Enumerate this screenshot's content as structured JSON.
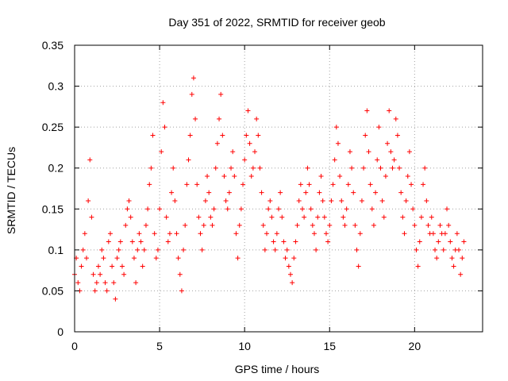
{
  "chart_data": {
    "type": "scatter",
    "title": "Day 351 of 2022, SRMTID for receiver geob",
    "xlabel": "GPS time / hours",
    "ylabel": "SRMTID / TECUs",
    "xlim": [
      0,
      24
    ],
    "ylim": [
      0,
      0.35
    ],
    "xticks": [
      0,
      5,
      10,
      15,
      20
    ],
    "xtick_labels": [
      "0",
      "5",
      "10",
      "15",
      "20"
    ],
    "yticks": [
      0,
      0.05,
      0.1,
      0.15,
      0.2,
      0.25,
      0.3,
      0.35
    ],
    "ytick_labels": [
      "0",
      "0.05",
      "0.1",
      "0.15",
      "0.2",
      "0.25",
      "0.3",
      "0.35"
    ],
    "grid": true,
    "marker": "+",
    "color": "#ff0000",
    "series": [
      {
        "name": "SRMTID",
        "points": [
          [
            0.0,
            0.07
          ],
          [
            0.1,
            0.09
          ],
          [
            0.2,
            0.06
          ],
          [
            0.3,
            0.05
          ],
          [
            0.4,
            0.08
          ],
          [
            0.5,
            0.1
          ],
          [
            0.6,
            0.12
          ],
          [
            0.7,
            0.09
          ],
          [
            0.8,
            0.16
          ],
          [
            0.9,
            0.21
          ],
          [
            1.0,
            0.14
          ],
          [
            1.1,
            0.07
          ],
          [
            1.2,
            0.05
          ],
          [
            1.3,
            0.06
          ],
          [
            1.4,
            0.08
          ],
          [
            1.5,
            0.07
          ],
          [
            1.6,
            0.1
          ],
          [
            1.7,
            0.09
          ],
          [
            1.8,
            0.06
          ],
          [
            1.9,
            0.05
          ],
          [
            2.0,
            0.11
          ],
          [
            2.1,
            0.12
          ],
          [
            2.2,
            0.08
          ],
          [
            2.3,
            0.06
          ],
          [
            2.4,
            0.04
          ],
          [
            2.5,
            0.09
          ],
          [
            2.6,
            0.1
          ],
          [
            2.7,
            0.11
          ],
          [
            2.8,
            0.08
          ],
          [
            2.9,
            0.07
          ],
          [
            3.0,
            0.13
          ],
          [
            3.1,
            0.15
          ],
          [
            3.2,
            0.16
          ],
          [
            3.3,
            0.14
          ],
          [
            3.4,
            0.11
          ],
          [
            3.5,
            0.09
          ],
          [
            3.6,
            0.06
          ],
          [
            3.7,
            0.1
          ],
          [
            3.8,
            0.12
          ],
          [
            3.9,
            0.11
          ],
          [
            4.0,
            0.08
          ],
          [
            4.1,
            0.1
          ],
          [
            4.2,
            0.13
          ],
          [
            4.3,
            0.15
          ],
          [
            4.4,
            0.18
          ],
          [
            4.5,
            0.2
          ],
          [
            4.6,
            0.24
          ],
          [
            4.7,
            0.12
          ],
          [
            4.8,
            0.09
          ],
          [
            4.9,
            0.1
          ],
          [
            5.0,
            0.15
          ],
          [
            5.1,
            0.22
          ],
          [
            5.2,
            0.28
          ],
          [
            5.3,
            0.25
          ],
          [
            5.4,
            0.14
          ],
          [
            5.5,
            0.11
          ],
          [
            5.6,
            0.12
          ],
          [
            5.7,
            0.17
          ],
          [
            5.8,
            0.2
          ],
          [
            5.9,
            0.16
          ],
          [
            6.0,
            0.12
          ],
          [
            6.1,
            0.09
          ],
          [
            6.2,
            0.07
          ],
          [
            6.3,
            0.05
          ],
          [
            6.4,
            0.1
          ],
          [
            6.5,
            0.13
          ],
          [
            6.6,
            0.18
          ],
          [
            6.7,
            0.21
          ],
          [
            6.8,
            0.24
          ],
          [
            6.9,
            0.29
          ],
          [
            7.0,
            0.31
          ],
          [
            7.1,
            0.26
          ],
          [
            7.2,
            0.18
          ],
          [
            7.3,
            0.14
          ],
          [
            7.4,
            0.12
          ],
          [
            7.5,
            0.1
          ],
          [
            7.6,
            0.13
          ],
          [
            7.7,
            0.16
          ],
          [
            7.8,
            0.19
          ],
          [
            7.9,
            0.17
          ],
          [
            8.0,
            0.14
          ],
          [
            8.1,
            0.13
          ],
          [
            8.2,
            0.15
          ],
          [
            8.3,
            0.2
          ],
          [
            8.4,
            0.23
          ],
          [
            8.5,
            0.26
          ],
          [
            8.6,
            0.29
          ],
          [
            8.7,
            0.24
          ],
          [
            8.8,
            0.19
          ],
          [
            8.9,
            0.16
          ],
          [
            9.0,
            0.15
          ],
          [
            9.1,
            0.17
          ],
          [
            9.2,
            0.2
          ],
          [
            9.3,
            0.22
          ],
          [
            9.4,
            0.19
          ],
          [
            9.5,
            0.12
          ],
          [
            9.6,
            0.09
          ],
          [
            9.7,
            0.13
          ],
          [
            9.8,
            0.15
          ],
          [
            9.9,
            0.18
          ],
          [
            10.0,
            0.21
          ],
          [
            10.1,
            0.24
          ],
          [
            10.2,
            0.27
          ],
          [
            10.3,
            0.23
          ],
          [
            10.4,
            0.19
          ],
          [
            10.5,
            0.2
          ],
          [
            10.6,
            0.22
          ],
          [
            10.7,
            0.26
          ],
          [
            10.8,
            0.24
          ],
          [
            10.9,
            0.2
          ],
          [
            11.0,
            0.17
          ],
          [
            11.1,
            0.13
          ],
          [
            11.2,
            0.1
          ],
          [
            11.3,
            0.12
          ],
          [
            11.4,
            0.15
          ],
          [
            11.5,
            0.16
          ],
          [
            11.6,
            0.14
          ],
          [
            11.7,
            0.11
          ],
          [
            11.8,
            0.1
          ],
          [
            11.9,
            0.12
          ],
          [
            12.0,
            0.15
          ],
          [
            12.1,
            0.17
          ],
          [
            12.2,
            0.14
          ],
          [
            12.3,
            0.11
          ],
          [
            12.4,
            0.09
          ],
          [
            12.5,
            0.1
          ],
          [
            12.6,
            0.08
          ],
          [
            12.7,
            0.07
          ],
          [
            12.8,
            0.06
          ],
          [
            12.9,
            0.09
          ],
          [
            13.0,
            0.11
          ],
          [
            13.1,
            0.13
          ],
          [
            13.2,
            0.16
          ],
          [
            13.3,
            0.18
          ],
          [
            13.4,
            0.15
          ],
          [
            13.5,
            0.14
          ],
          [
            13.6,
            0.17
          ],
          [
            13.7,
            0.2
          ],
          [
            13.8,
            0.18
          ],
          [
            13.9,
            0.15
          ],
          [
            14.0,
            0.13
          ],
          [
            14.1,
            0.12
          ],
          [
            14.2,
            0.1
          ],
          [
            14.3,
            0.14
          ],
          [
            14.4,
            0.17
          ],
          [
            14.5,
            0.19
          ],
          [
            14.6,
            0.16
          ],
          [
            14.7,
            0.14
          ],
          [
            14.8,
            0.12
          ],
          [
            14.9,
            0.11
          ],
          [
            15.0,
            0.13
          ],
          [
            15.1,
            0.16
          ],
          [
            15.2,
            0.18
          ],
          [
            15.3,
            0.21
          ],
          [
            15.4,
            0.25
          ],
          [
            15.5,
            0.23
          ],
          [
            15.6,
            0.19
          ],
          [
            15.7,
            0.16
          ],
          [
            15.8,
            0.14
          ],
          [
            15.9,
            0.13
          ],
          [
            16.0,
            0.15
          ],
          [
            16.1,
            0.18
          ],
          [
            16.2,
            0.22
          ],
          [
            16.3,
            0.2
          ],
          [
            16.4,
            0.17
          ],
          [
            16.5,
            0.13
          ],
          [
            16.6,
            0.1
          ],
          [
            16.7,
            0.08
          ],
          [
            16.8,
            0.12
          ],
          [
            16.9,
            0.16
          ],
          [
            17.0,
            0.2
          ],
          [
            17.1,
            0.24
          ],
          [
            17.2,
            0.27
          ],
          [
            17.3,
            0.22
          ],
          [
            17.4,
            0.18
          ],
          [
            17.5,
            0.15
          ],
          [
            17.6,
            0.13
          ],
          [
            17.7,
            0.17
          ],
          [
            17.8,
            0.21
          ],
          [
            17.9,
            0.25
          ],
          [
            18.0,
            0.2
          ],
          [
            18.1,
            0.16
          ],
          [
            18.2,
            0.14
          ],
          [
            18.3,
            0.19
          ],
          [
            18.4,
            0.23
          ],
          [
            18.5,
            0.27
          ],
          [
            18.6,
            0.22
          ],
          [
            18.7,
            0.2
          ],
          [
            18.8,
            0.21
          ],
          [
            18.9,
            0.26
          ],
          [
            19.0,
            0.24
          ],
          [
            19.1,
            0.2
          ],
          [
            19.2,
            0.17
          ],
          [
            19.3,
            0.14
          ],
          [
            19.4,
            0.12
          ],
          [
            19.5,
            0.16
          ],
          [
            19.6,
            0.19
          ],
          [
            19.7,
            0.22
          ],
          [
            19.8,
            0.18
          ],
          [
            19.9,
            0.15
          ],
          [
            20.0,
            0.13
          ],
          [
            20.1,
            0.1
          ],
          [
            20.2,
            0.08
          ],
          [
            20.3,
            0.11
          ],
          [
            20.4,
            0.14
          ],
          [
            20.5,
            0.18
          ],
          [
            20.6,
            0.2
          ],
          [
            20.7,
            0.16
          ],
          [
            20.8,
            0.13
          ],
          [
            20.9,
            0.12
          ],
          [
            21.0,
            0.14
          ],
          [
            21.1,
            0.12
          ],
          [
            21.2,
            0.1
          ],
          [
            21.3,
            0.09
          ],
          [
            21.4,
            0.11
          ],
          [
            21.5,
            0.13
          ],
          [
            21.6,
            0.12
          ],
          [
            21.7,
            0.1
          ],
          [
            21.8,
            0.12
          ],
          [
            21.9,
            0.15
          ],
          [
            22.0,
            0.13
          ],
          [
            22.1,
            0.11
          ],
          [
            22.2,
            0.09
          ],
          [
            22.3,
            0.08
          ],
          [
            22.4,
            0.1
          ],
          [
            22.5,
            0.12
          ],
          [
            22.6,
            0.1
          ],
          [
            22.7,
            0.07
          ],
          [
            22.8,
            0.09
          ],
          [
            22.9,
            0.11
          ]
        ]
      }
    ]
  }
}
